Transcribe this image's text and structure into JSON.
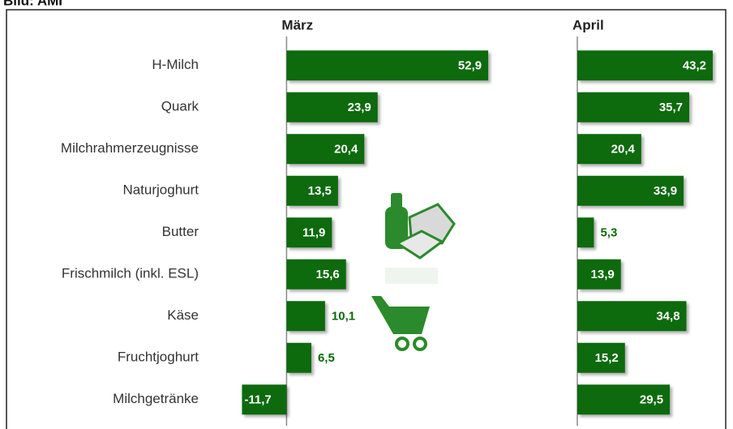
{
  "chart_data": {
    "type": "bar",
    "orientation": "horizontal",
    "source": "Bild: AMI",
    "categories": [
      "H-Milch",
      "Quark",
      "Milchrahmerzeugnisse",
      "Naturjoghurt",
      "Butter",
      "Frischmilch (inkl. ESL)",
      "Käse",
      "Fruchtjoghurt",
      "Milchgetränke"
    ],
    "series": [
      {
        "name": "März",
        "color": "#0b6a0b",
        "xlim": [
          -12,
          55
        ],
        "values": [
          52.9,
          23.9,
          20.4,
          13.5,
          11.9,
          15.6,
          10.1,
          6.5,
          -11.7
        ],
        "value_labels": [
          "52,9",
          "23,9",
          "20,4",
          "13,5",
          "11,9",
          "15,6",
          "10,1",
          "6,5",
          "-11,7"
        ]
      },
      {
        "name": "April",
        "color": "#0b6a0b",
        "xlim": [
          0,
          45
        ],
        "values": [
          43.2,
          35.7,
          20.4,
          33.9,
          5.3,
          13.9,
          34.8,
          15.2,
          29.5
        ],
        "value_labels": [
          "43,2",
          "35,7",
          "20,4",
          "33,9",
          "5,3",
          "13,9",
          "34,8",
          "15,2",
          "29,5"
        ]
      }
    ]
  }
}
